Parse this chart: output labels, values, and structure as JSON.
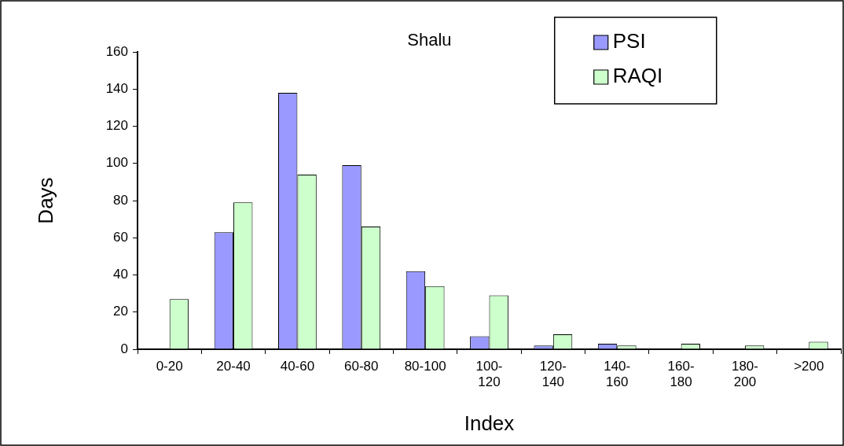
{
  "chart_data": {
    "type": "bar",
    "title": "Shalu",
    "xlabel": "Index",
    "ylabel": "Days",
    "categories": [
      "0-20",
      "20-40",
      "40-60",
      "60-80",
      "80-100",
      "100-120",
      "120-140",
      "140-160",
      "160-180",
      "180-200",
      ">200"
    ],
    "series": [
      {
        "name": "PSI",
        "color": "#9999ff",
        "values": [
          0,
          63,
          138,
          99,
          42,
          7,
          2,
          3,
          0,
          0,
          0
        ]
      },
      {
        "name": "RAQI",
        "color": "#ccffcc",
        "values": [
          27,
          79,
          94,
          66,
          34,
          29,
          8,
          2,
          3,
          2,
          4
        ]
      }
    ],
    "ylim": [
      0,
      160
    ],
    "yticks": [
      0,
      20,
      40,
      60,
      80,
      100,
      120,
      140,
      160
    ],
    "grid": false,
    "legend": "top right"
  }
}
